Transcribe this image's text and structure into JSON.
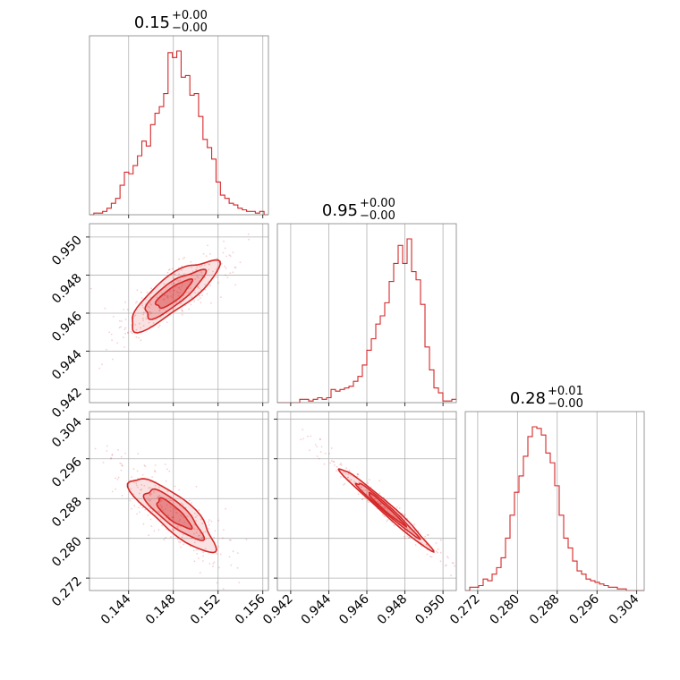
{
  "chart_data": {
    "type": "corner",
    "color": "#d62728",
    "grid": true,
    "panel_titles": [
      {
        "main": "0.15",
        "sup": "+0.00",
        "sub": "−0.00"
      },
      {
        "main": "0.95",
        "sup": "+0.00",
        "sub": "−0.00"
      },
      {
        "main": "0.28",
        "sup": "+0.01",
        "sub": "−0.00"
      }
    ],
    "parameters": [
      {
        "range": [
          0.1405,
          0.1565
        ],
        "ticks": [
          0.144,
          0.148,
          0.152,
          0.156
        ],
        "tick_labels": [
          "0.144",
          "0.148",
          "0.152",
          "0.156"
        ],
        "hist": [
          0.0,
          0.01,
          0.01,
          0.02,
          0.04,
          0.07,
          0.1,
          0.18,
          0.26,
          0.25,
          0.3,
          0.36,
          0.45,
          0.42,
          0.55,
          0.62,
          0.66,
          0.74,
          0.99,
          0.96,
          1.0,
          0.84,
          0.85,
          0.73,
          0.74,
          0.6,
          0.46,
          0.41,
          0.34,
          0.2,
          0.12,
          0.1,
          0.07,
          0.06,
          0.04,
          0.03,
          0.02,
          0.02,
          0.01,
          0.02,
          0.0
        ]
      },
      {
        "range": [
          0.9413,
          0.9507
        ],
        "ticks": [
          0.942,
          0.944,
          0.946,
          0.948,
          0.95
        ],
        "tick_labels": [
          "0.942",
          "0.944",
          "0.946",
          "0.948",
          "0.950"
        ],
        "hist": [
          0.0,
          0.0,
          0.0,
          0.0,
          0.0,
          0.02,
          0.02,
          0.01,
          0.02,
          0.03,
          0.02,
          0.03,
          0.08,
          0.07,
          0.08,
          0.09,
          0.1,
          0.13,
          0.16,
          0.23,
          0.32,
          0.39,
          0.48,
          0.53,
          0.61,
          0.74,
          0.85,
          0.96,
          0.85,
          1.0,
          0.8,
          0.75,
          0.6,
          0.34,
          0.2,
          0.09,
          0.06,
          0.01,
          0.01,
          0.02
        ]
      },
      {
        "range": [
          0.2695,
          0.3055
        ],
        "ticks": [
          0.272,
          0.28,
          0.288,
          0.296,
          0.304
        ],
        "tick_labels": [
          "0.272",
          "0.280",
          "0.288",
          "0.296",
          "0.304"
        ],
        "hist": [
          0.0,
          0.02,
          0.02,
          0.03,
          0.07,
          0.06,
          0.1,
          0.14,
          0.2,
          0.32,
          0.46,
          0.6,
          0.7,
          0.82,
          0.94,
          1.0,
          0.99,
          0.95,
          0.84,
          0.78,
          0.64,
          0.46,
          0.32,
          0.26,
          0.18,
          0.12,
          0.1,
          0.07,
          0.06,
          0.05,
          0.04,
          0.03,
          0.02,
          0.02,
          0.01,
          0.01,
          0.0,
          0.0,
          0.0,
          0.0
        ]
      }
    ]
  }
}
